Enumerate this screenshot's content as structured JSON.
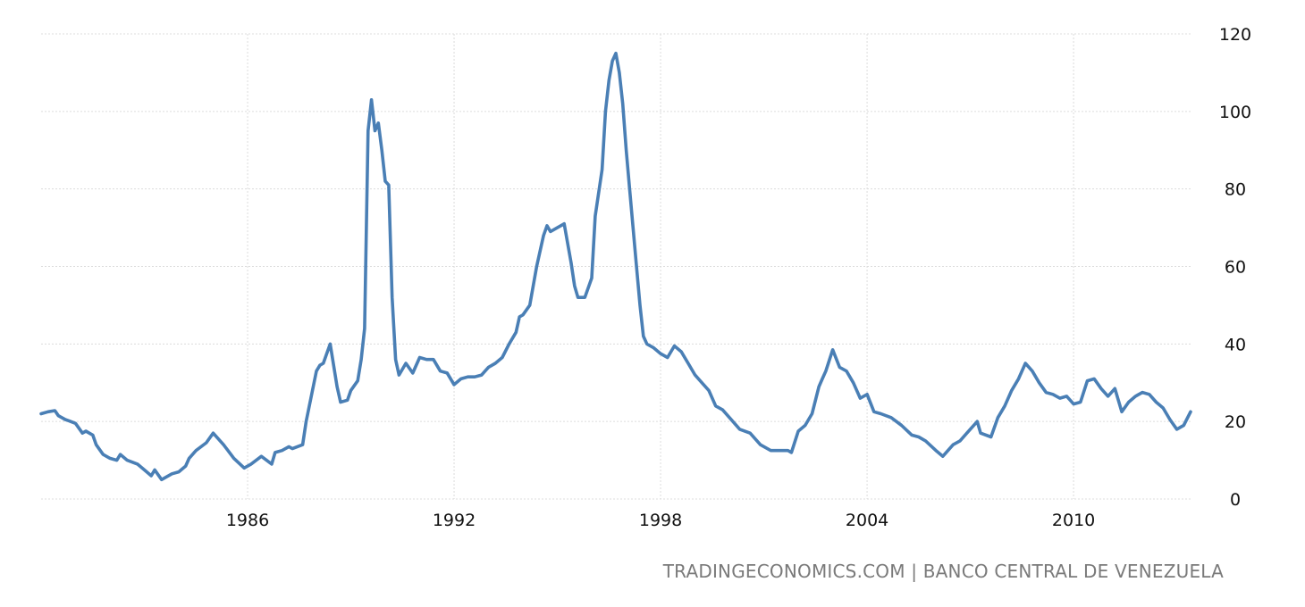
{
  "source_credit": "TRADINGECONOMICS.COM | BANCO CENTRAL DE VENEZUELA",
  "chart_data": {
    "type": "line",
    "title": "",
    "xlabel": "",
    "ylabel": "",
    "xlim": [
      1980.0,
      2013.4
    ],
    "ylim": [
      0,
      120
    ],
    "x_ticks": [
      1986,
      1992,
      1998,
      2004,
      2010
    ],
    "y_ticks": [
      0,
      20,
      40,
      60,
      80,
      100,
      120
    ],
    "x_tick_labels": [
      "1986",
      "1992",
      "1998",
      "2004",
      "2010"
    ],
    "y_tick_labels": [
      "0",
      "20",
      "40",
      "60",
      "80",
      "100",
      "120"
    ],
    "y_axis_position": "right",
    "grid": true,
    "legend": "none",
    "line_color": "#4a7fb5",
    "series": [
      {
        "x": [
          1980.0,
          1980.2,
          1980.4,
          1980.5,
          1980.7,
          1980.8,
          1981.0,
          1981.2,
          1981.3,
          1981.5,
          1981.6,
          1981.8,
          1982.0,
          1982.2,
          1982.3,
          1982.5,
          1982.8,
          1983.0,
          1983.2,
          1983.3,
          1983.5,
          1983.8,
          1984.0,
          1984.2,
          1984.3,
          1984.5,
          1984.8,
          1985.0,
          1985.3,
          1985.6,
          1985.9,
          1986.1,
          1986.4,
          1986.7,
          1986.8,
          1987.0,
          1987.2,
          1987.3,
          1987.6,
          1987.7,
          1988.0,
          1988.1,
          1988.2,
          1988.4,
          1988.6,
          1988.7,
          1988.9,
          1989.0,
          1989.2,
          1989.3,
          1989.4,
          1989.5,
          1989.6,
          1989.7,
          1989.8,
          1989.9,
          1990.0,
          1990.1,
          1990.2,
          1990.3,
          1990.4,
          1990.6,
          1990.8,
          1991.0,
          1991.2,
          1991.4,
          1991.6,
          1991.8,
          1992.0,
          1992.2,
          1992.4,
          1992.6,
          1992.8,
          1993.0,
          1993.2,
          1993.4,
          1993.6,
          1993.8,
          1993.9,
          1994.0,
          1994.2,
          1994.4,
          1994.6,
          1994.7,
          1994.8,
          1995.0,
          1995.2,
          1995.4,
          1995.5,
          1995.6,
          1995.8,
          1996.0,
          1996.1,
          1996.3,
          1996.4,
          1996.5,
          1996.6,
          1996.7,
          1996.8,
          1996.9,
          1997.0,
          1997.1,
          1997.3,
          1997.4,
          1997.5,
          1997.6,
          1997.8,
          1998.0,
          1998.2,
          1998.4,
          1998.6,
          1998.8,
          1999.0,
          1999.2,
          1999.4,
          1999.6,
          1999.8,
          2000.0,
          2000.3,
          2000.6,
          2000.9,
          2001.2,
          2001.5,
          2001.7,
          2001.8,
          2002.0,
          2002.2,
          2002.4,
          2002.6,
          2002.7,
          2002.8,
          2003.0,
          2003.2,
          2003.4,
          2003.6,
          2003.8,
          2004.0,
          2004.2,
          2004.4,
          2004.7,
          2005.0,
          2005.3,
          2005.5,
          2005.7,
          2006.0,
          2006.2,
          2006.5,
          2006.7,
          2006.9,
          2007.2,
          2007.3,
          2007.6,
          2007.8,
          2008.0,
          2008.2,
          2008.4,
          2008.6,
          2008.8,
          2009.0,
          2009.2,
          2009.4,
          2009.6,
          2009.8,
          2010.0,
          2010.2,
          2010.4,
          2010.6,
          2010.8,
          2011.0,
          2011.2,
          2011.4,
          2011.6,
          2011.8,
          2012.0,
          2012.2,
          2012.4,
          2012.6,
          2012.8,
          2013.0,
          2013.2,
          2013.4
        ],
        "values": [
          22.0,
          22.5,
          22.8,
          21.5,
          20.5,
          20.2,
          19.5,
          17.0,
          17.5,
          16.5,
          14.0,
          11.5,
          10.5,
          10.0,
          11.5,
          10.0,
          9.0,
          7.5,
          6.0,
          7.5,
          5.0,
          6.5,
          7.0,
          8.5,
          10.5,
          12.5,
          14.5,
          17.0,
          14.0,
          10.5,
          8.0,
          9.0,
          11.0,
          9.0,
          12.0,
          12.5,
          13.5,
          13.0,
          14.0,
          20.0,
          33.0,
          34.5,
          35.0,
          40.0,
          29.0,
          25.0,
          25.5,
          28.0,
          30.5,
          36.0,
          44.0,
          95.0,
          103.0,
          95.0,
          97.0,
          90.0,
          82.0,
          81.0,
          52.0,
          36.0,
          32.0,
          35.0,
          32.5,
          36.5,
          36.0,
          36.0,
          33.0,
          32.5,
          29.5,
          31.0,
          31.5,
          31.5,
          32.0,
          34.0,
          35.0,
          36.5,
          40.0,
          43.0,
          47.0,
          47.5,
          50.0,
          60.0,
          68.0,
          70.5,
          69.0,
          70.0,
          71.0,
          61.0,
          55.0,
          52.0,
          52.0,
          57.0,
          73.0,
          85.0,
          100.0,
          108.0,
          113.0,
          115.0,
          110.0,
          102.0,
          90.0,
          80.0,
          60.0,
          50.0,
          42.0,
          40.0,
          39.0,
          37.5,
          36.5,
          39.5,
          38.0,
          35.0,
          32.0,
          30.0,
          28.0,
          24.0,
          23.0,
          21.0,
          18.0,
          17.0,
          14.0,
          12.5,
          12.5,
          12.5,
          12.0,
          17.5,
          19.0,
          22.0,
          29.0,
          31.0,
          33.0,
          38.5,
          34.0,
          33.0,
          30.0,
          26.0,
          27.0,
          22.5,
          22.0,
          21.0,
          19.0,
          16.5,
          16.0,
          15.0,
          12.5,
          11.0,
          14.0,
          15.0,
          17.0,
          20.0,
          17.0,
          16.0,
          21.0,
          24.0,
          28.0,
          31.0,
          35.0,
          33.0,
          30.0,
          27.5,
          27.0,
          26.0,
          26.5,
          24.5,
          25.0,
          30.5,
          31.0,
          28.5,
          26.5,
          28.5,
          22.5,
          25.0,
          26.5,
          27.5,
          27.0,
          25.0,
          23.5,
          20.5,
          18.0,
          19.0,
          22.5
        ]
      }
    ]
  }
}
